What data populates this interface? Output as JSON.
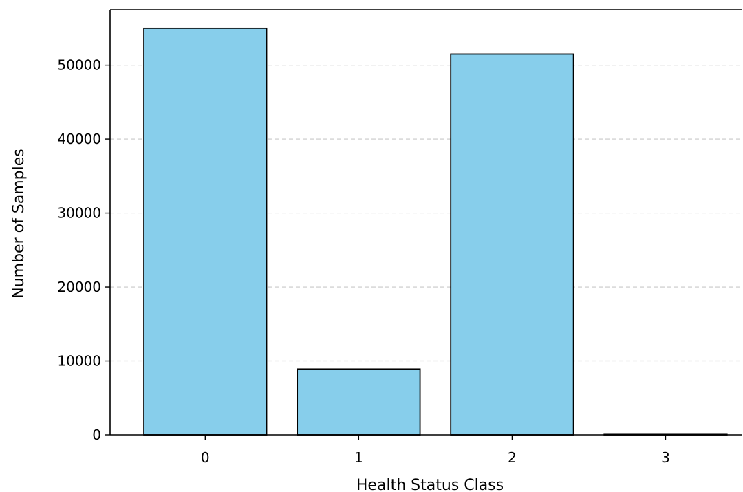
{
  "chart_data": {
    "type": "bar",
    "title": "",
    "xlabel": "Health Status Class",
    "ylabel": "Number of Samples",
    "categories": [
      "0",
      "1",
      "2",
      "3"
    ],
    "values": [
      55000,
      8900,
      51500,
      150
    ],
    "ylim": [
      0,
      57500
    ],
    "yticks": [
      0,
      10000,
      20000,
      30000,
      40000,
      50000
    ],
    "ytick_labels": [
      "0",
      "10000",
      "20000",
      "30000",
      "40000",
      "50000"
    ],
    "grid": "y-dashed",
    "bar_color": "#87CEEB",
    "edge_color": "#000000"
  }
}
